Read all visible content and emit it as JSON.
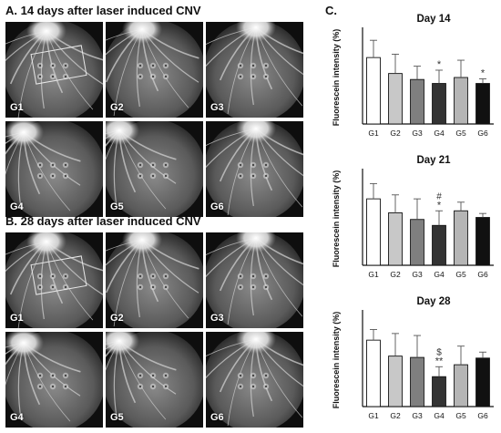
{
  "panels": {
    "a": {
      "label": "A. 14 days after laser induced CNV"
    },
    "b": {
      "label": "B. 28 days after laser induced CNV"
    },
    "c": {
      "label": "C."
    }
  },
  "image_labels": [
    "G1",
    "G2",
    "G3",
    "G4",
    "G5",
    "G6"
  ],
  "colors": {
    "bar_fills": [
      "#ffffff",
      "#c8c8c8",
      "#7f7f7f",
      "#333333",
      "#b5b5b5",
      "#111111"
    ],
    "axis": "#111111"
  },
  "chart_data": [
    {
      "type": "bar",
      "title": "Day 14",
      "ylabel": "Fluorescein intensity (%)",
      "categories": [
        "G1",
        "G2",
        "G3",
        "G4",
        "G5",
        "G6"
      ],
      "values": [
        100,
        76,
        67,
        61,
        70,
        61
      ],
      "errors": [
        26,
        29,
        20,
        20,
        26,
        7
      ],
      "annotations": [
        "",
        "",
        "",
        "*",
        "",
        "*"
      ],
      "ylim": [
        0,
        140
      ]
    },
    {
      "type": "bar",
      "title": "Day 21",
      "ylabel": "Fluorescein intensity (%)",
      "categories": [
        "G1",
        "G2",
        "G3",
        "G4",
        "G5",
        "G6"
      ],
      "values": [
        100,
        79,
        69,
        60,
        82,
        72
      ],
      "errors": [
        23,
        27,
        31,
        22,
        13,
        6
      ],
      "annotations": [
        "",
        "",
        "",
        "#\n*",
        "",
        ""
      ],
      "ylim": [
        0,
        140
      ]
    },
    {
      "type": "bar",
      "title": "Day 28",
      "ylabel": "Fluorescein intensity (%)",
      "categories": [
        "G1",
        "G2",
        "G3",
        "G4",
        "G5",
        "G6"
      ],
      "values": [
        100,
        76,
        74,
        45,
        63,
        73
      ],
      "errors": [
        16,
        34,
        33,
        15,
        28,
        9
      ],
      "annotations": [
        "",
        "",
        "",
        "$\n**",
        "",
        ""
      ],
      "ylim": [
        0,
        140
      ]
    }
  ]
}
